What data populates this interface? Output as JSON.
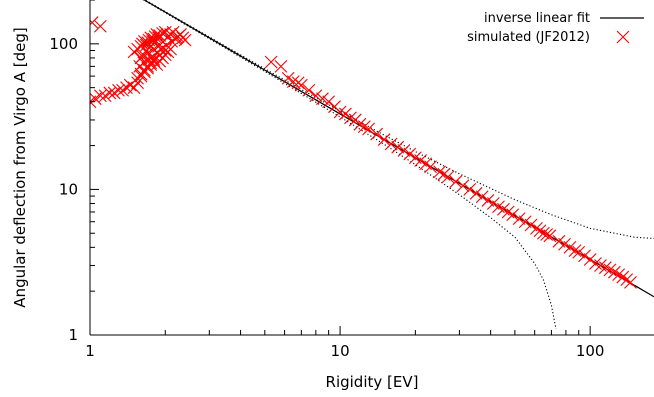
{
  "chart_data": {
    "type": "scatter",
    "title": "",
    "xlabel": "Rigidity [EV]",
    "ylabel": "Angular deflection from Virgo A [deg]",
    "xscale": "log",
    "yscale": "log",
    "xlim": [
      1,
      180
    ],
    "ylim": [
      1,
      200
    ],
    "xticks": [
      1,
      10,
      100
    ],
    "xtick_labels": [
      "1",
      "10",
      "100"
    ],
    "yticks": [
      1,
      10,
      100
    ],
    "ytick_labels": [
      "1",
      "10",
      "100"
    ],
    "grid": false,
    "legend_position": "top-right",
    "series": [
      {
        "name": "inverse linear fit",
        "kind": "line",
        "style": "solid",
        "color": "#000000",
        "x": [
          1,
          1.5,
          2,
          3,
          5,
          7,
          10,
          15,
          20,
          30,
          50,
          70,
          100,
          150,
          180
        ],
        "y": [
          330,
          220,
          165,
          110,
          66,
          47.1,
          33,
          22,
          16.5,
          11,
          6.6,
          4.71,
          3.3,
          2.2,
          1.83
        ]
      },
      {
        "name": "",
        "kind": "line",
        "style": "dotted",
        "color": "#000000",
        "x": [
          1,
          1.5,
          2,
          3,
          5,
          7,
          10,
          15,
          20,
          30,
          50,
          70,
          100,
          150,
          180
        ],
        "y": [
          331,
          221.4,
          166.5,
          111.5,
          67.4,
          48.6,
          34.5,
          23.6,
          18.2,
          12.8,
          8.5,
          6.7,
          5.4,
          4.7,
          4.6
        ]
      },
      {
        "name": "",
        "kind": "line",
        "style": "dotted",
        "color": "#000000",
        "x": [
          1,
          1.5,
          2,
          3,
          5,
          7,
          10,
          15,
          20,
          30,
          40,
          50,
          60,
          65,
          70,
          73
        ],
        "y": [
          329,
          218.6,
          163.5,
          108.5,
          64.6,
          45.6,
          31.5,
          20.4,
          14.8,
          9.2,
          6.4,
          4.7,
          3.1,
          2.4,
          1.6,
          1.1
        ]
      },
      {
        "name": "simulated (JF2012)",
        "kind": "scatter",
        "marker": "x",
        "color": "#ff0000",
        "x": [
          1,
          1.05,
          1.1,
          1.15,
          1.2,
          1.25,
          1.3,
          1.35,
          1.4,
          1.45,
          1.5,
          1.55,
          1.5,
          1.55,
          1.6,
          1.62,
          1.65,
          1.68,
          1.7,
          1.72,
          1.75,
          1.78,
          1.8,
          1.82,
          1.85,
          1.88,
          1.9,
          1.95,
          2.0,
          2.05,
          2.1,
          2.15,
          2.2,
          2.25,
          2.3,
          2.35,
          2.4,
          1.6,
          1.65,
          1.7,
          1.75,
          1.8,
          1.85,
          1.9,
          1.95,
          2.0,
          2.05,
          2.1,
          1.55,
          1.6,
          1.65,
          1.7,
          1.75,
          1.8,
          1.9,
          2.0,
          1.6,
          1.7,
          1.8,
          1.9,
          1.62,
          1.68,
          1.75,
          1.82,
          1.88,
          1.58,
          1.64,
          1.72,
          1.78,
          1.86,
          1.92,
          2.02,
          2.12,
          2.22,
          1.02,
          1.1,
          5.3,
          5.8,
          6.2,
          6.5,
          6.8,
          7.0,
          7.5,
          8.0,
          8.5,
          9.0,
          9.5,
          10.0,
          10.5,
          11.0,
          11.5,
          12.0,
          12.5,
          13.0,
          14.0,
          15.0,
          16.0,
          17.0,
          18.0,
          19.0,
          20.0,
          21.0,
          22.0,
          23.0,
          25.0,
          26.0,
          27.0,
          29.0,
          31.0,
          33.0,
          35.0,
          37.0,
          39.0,
          41.0,
          43.0,
          45.0,
          47.0,
          49.0,
          52.0,
          55.0,
          58.0,
          61.0,
          63.0,
          65.0,
          67.0,
          69.0,
          75.0,
          79.0,
          83.0,
          87.0,
          90.0,
          95.0,
          100.0,
          105.0,
          110.0,
          115.0,
          120.0,
          125.0,
          130.0,
          135.0,
          140.0,
          145.0
        ],
        "y": [
          40,
          42,
          44,
          44,
          46,
          46,
          48,
          48,
          50,
          52,
          50,
          54,
          88,
          92,
          96,
          100,
          104,
          98,
          102,
          106,
          110,
          104,
          108,
          112,
          116,
          110,
          114,
          118,
          120,
          112,
          116,
          120,
          108,
          112,
          116,
          110,
          106,
          62,
          66,
          70,
          74,
          78,
          72,
          76,
          80,
          84,
          88,
          92,
          58,
          60,
          64,
          68,
          72,
          76,
          84,
          90,
          80,
          86,
          92,
          98,
          82,
          90,
          96,
          102,
          96,
          70,
          74,
          78,
          82,
          86,
          92,
          98,
          104,
          110,
          140,
          132,
          75,
          70,
          58,
          55,
          54,
          52,
          48,
          44,
          42,
          40,
          37,
          34,
          33,
          31,
          30,
          28,
          27,
          26,
          24,
          22,
          20.5,
          19.5,
          18.5,
          17.5,
          16.5,
          15.8,
          15.0,
          14.3,
          13.2,
          12.7,
          12.2,
          11.3,
          10.6,
          10.0,
          9.4,
          8.9,
          8.4,
          8.0,
          7.6,
          7.3,
          7.0,
          6.7,
          6.3,
          6.0,
          5.7,
          5.4,
          5.2,
          5.0,
          4.9,
          4.8,
          4.4,
          4.2,
          4.0,
          3.8,
          3.7,
          3.5,
          3.3,
          3.1,
          3.0,
          2.9,
          2.8,
          2.7,
          2.6,
          2.5,
          2.4,
          2.3
        ]
      }
    ],
    "legend": [
      {
        "label": "inverse linear fit",
        "marker": "line",
        "color": "#000000"
      },
      {
        "label": "simulated (JF2012)",
        "marker": "x",
        "color": "#ff0000"
      }
    ]
  }
}
